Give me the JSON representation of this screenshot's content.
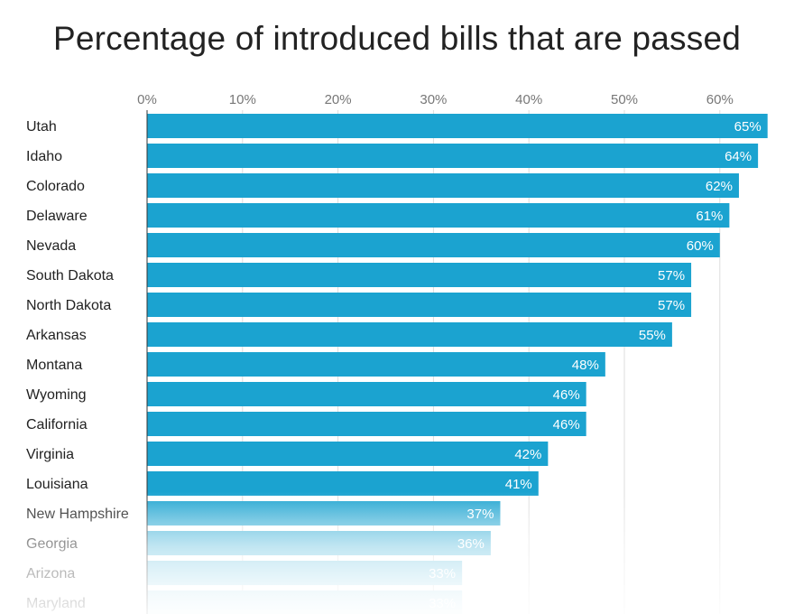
{
  "chart_data": {
    "type": "bar",
    "orientation": "horizontal",
    "title": "Percentage of introduced bills that are passed",
    "categories": [
      "Utah",
      "Idaho",
      "Colorado",
      "Delaware",
      "Nevada",
      "South Dakota",
      "North Dakota",
      "Arkansas",
      "Montana",
      "Wyoming",
      "California",
      "Virginia",
      "Louisiana",
      "New Hampshire",
      "Georgia",
      "Arizona",
      "Maryland"
    ],
    "values": [
      65,
      64,
      62,
      61,
      60,
      57,
      57,
      55,
      48,
      46,
      46,
      42,
      41,
      37,
      36,
      33,
      33
    ],
    "value_labels": [
      "65%",
      "64%",
      "62%",
      "61%",
      "60%",
      "57%",
      "57%",
      "55%",
      "48%",
      "46%",
      "46%",
      "42%",
      "41%",
      "37%",
      "36%",
      "33%",
      "33%"
    ],
    "xaxis_ticks": [
      0,
      10,
      20,
      30,
      40,
      50,
      60
    ],
    "xaxis_tick_labels": [
      "0%",
      "10%",
      "20%",
      "30%",
      "40%",
      "50%",
      "60%"
    ],
    "xlim": [
      0,
      65
    ],
    "grid": true,
    "axis_position": "top",
    "colors": {
      "bar": "#1ba3d0",
      "bar_fade": "#e6f5fa",
      "grid": "#dddddd",
      "axis": "#333333"
    }
  }
}
